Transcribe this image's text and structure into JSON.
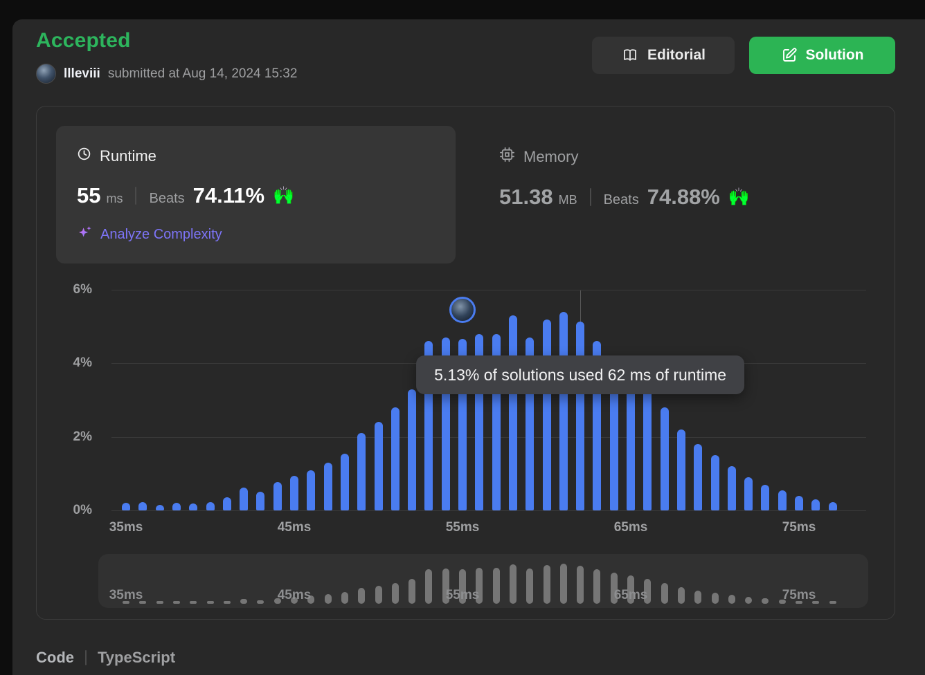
{
  "status": {
    "label": "Accepted"
  },
  "header": {
    "username": "llleviii",
    "submitted_text": "submitted at Aug 14, 2024 15:32",
    "editorial_button": "Editorial",
    "solution_button": "Solution"
  },
  "runtime_panel": {
    "title": "Runtime",
    "value": "55",
    "unit": "ms",
    "beats_label": "Beats",
    "beats_value": "74.11%",
    "hands_emoji": "🙌",
    "analyze_link": "Analyze Complexity"
  },
  "memory_panel": {
    "title": "Memory",
    "value": "51.38",
    "unit": "MB",
    "beats_label": "Beats",
    "beats_value": "74.88%",
    "hands_emoji": "🙌"
  },
  "footer": {
    "code_label": "Code",
    "language": "TypeScript"
  },
  "icons": {
    "runtime": "clock-icon",
    "memory": "chip-icon",
    "editorial": "book-icon",
    "solution": "edit-square-icon",
    "analyze": "sparkles-icon"
  },
  "colors": {
    "accepted_green": "#2db55d",
    "solution_button_green": "#2cb454",
    "bar_blue": "#4a7cf0",
    "analyze_purple": "#7d74f8",
    "panel_bg": "#282828",
    "tooltip_bg": "#404145"
  },
  "chart_data": {
    "type": "bar",
    "description": "Runtime distribution histogram (% of solutions per runtime in ms)",
    "x_start_ms": 35,
    "x_step_ms": 1,
    "x": [
      35,
      36,
      37,
      38,
      39,
      40,
      41,
      42,
      43,
      44,
      45,
      46,
      47,
      48,
      49,
      50,
      51,
      52,
      53,
      54,
      55,
      56,
      57,
      58,
      59,
      60,
      61,
      62,
      63,
      64,
      65,
      66,
      67,
      68,
      69,
      70,
      71,
      72,
      73,
      74,
      75,
      76,
      77
    ],
    "values_percent": [
      0.2,
      0.22,
      0.15,
      0.2,
      0.18,
      0.22,
      0.35,
      0.62,
      0.5,
      0.78,
      0.95,
      1.1,
      1.3,
      1.55,
      2.1,
      2.4,
      2.8,
      3.3,
      4.6,
      4.7,
      4.66,
      4.8,
      4.8,
      5.3,
      4.7,
      5.2,
      5.4,
      5.13,
      4.6,
      4.2,
      3.8,
      3.3,
      2.8,
      2.2,
      1.8,
      1.5,
      1.2,
      0.9,
      0.7,
      0.55,
      0.4,
      0.3,
      0.22
    ],
    "x_ticks": [
      "35ms",
      "45ms",
      "55ms",
      "65ms",
      "75ms"
    ],
    "x_tick_ms": [
      35,
      45,
      55,
      65,
      75
    ],
    "y_ticks": [
      "6%",
      "4%",
      "2%",
      "0%"
    ],
    "y_gridlines_percent": [
      6,
      4,
      2,
      0
    ],
    "ylim": [
      0,
      6
    ],
    "grid": true,
    "user_marker_ms": 55,
    "tooltip": {
      "text": "5.13% of solutions used 62 ms of runtime",
      "at_ms": 62,
      "value_percent": 5.13
    },
    "brush": {
      "present": true,
      "x_ticks": [
        "35ms",
        "45ms",
        "55ms",
        "65ms",
        "75ms"
      ]
    }
  }
}
